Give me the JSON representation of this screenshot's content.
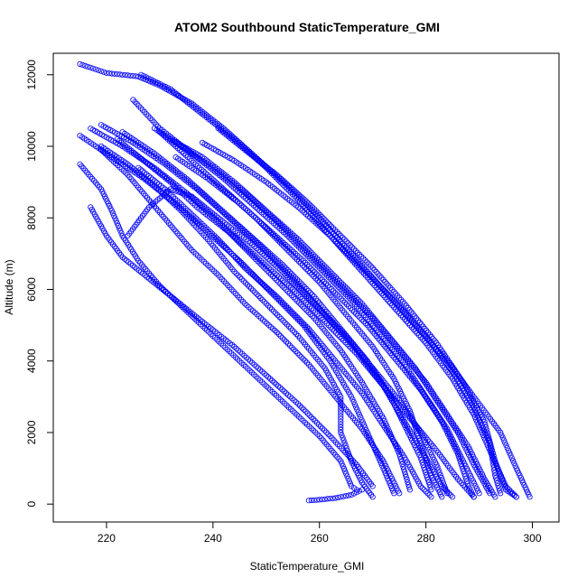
{
  "chart_data": {
    "type": "scatter",
    "title": "ATOM2 Southbound StaticTemperature_GMI",
    "xlabel": "StaticTemperature_GMI",
    "ylabel": "Altitude (m)",
    "xlim": [
      210,
      305
    ],
    "ylim": [
      -500,
      12600
    ],
    "xticks": [
      220,
      240,
      260,
      280,
      300
    ],
    "yticks": [
      0,
      2000,
      4000,
      6000,
      8000,
      10000,
      12000
    ],
    "xtick_labels": [
      "220",
      "240",
      "260",
      "280",
      "300"
    ],
    "ytick_labels": [
      "0",
      "2000",
      "4000",
      "6000",
      "8000",
      "10000",
      "12000"
    ],
    "marker": "open-circle",
    "color": "#0000ff",
    "grid": false,
    "legend": "none",
    "series": [
      {
        "points": [
          [
            215,
            12300
          ],
          [
            220,
            12050
          ],
          [
            226,
            11950
          ],
          [
            230,
            11700
          ],
          [
            236,
            11200
          ],
          [
            242,
            10500
          ],
          [
            248,
            9700
          ],
          [
            254,
            8900
          ],
          [
            260,
            8000
          ],
          [
            266,
            7000
          ],
          [
            272,
            6000
          ],
          [
            278,
            5000
          ],
          [
            284,
            4000
          ],
          [
            289,
            3000
          ],
          [
            294,
            2000
          ],
          [
            297,
            1000
          ],
          [
            299.5,
            200
          ]
        ]
      },
      {
        "points": [
          [
            226.5,
            12000
          ],
          [
            232,
            11600
          ],
          [
            238,
            10900
          ],
          [
            244,
            10200
          ],
          [
            250,
            9400
          ],
          [
            256,
            8500
          ],
          [
            262,
            7500
          ],
          [
            268,
            6500
          ],
          [
            274,
            5500
          ],
          [
            280,
            4500
          ],
          [
            285,
            3500
          ],
          [
            289,
            2500
          ],
          [
            292,
            1500
          ],
          [
            295,
            500
          ],
          [
            297,
            200
          ]
        ]
      },
      {
        "points": [
          [
            219,
            10600
          ],
          [
            225,
            10100
          ],
          [
            231,
            9500
          ],
          [
            237,
            8800
          ],
          [
            243,
            8000
          ],
          [
            249,
            7200
          ],
          [
            255,
            6300
          ],
          [
            261,
            5300
          ],
          [
            267,
            4300
          ],
          [
            272,
            3300
          ],
          [
            276,
            2300
          ],
          [
            280,
            1300
          ],
          [
            283,
            500
          ],
          [
            285,
            200
          ]
        ]
      },
      {
        "points": [
          [
            215,
            10300
          ],
          [
            221,
            9700
          ],
          [
            227,
            9100
          ],
          [
            233,
            8400
          ],
          [
            239,
            7600
          ],
          [
            245,
            6800
          ],
          [
            251,
            5900
          ],
          [
            257,
            5000
          ],
          [
            262,
            4000
          ],
          [
            266,
            3000
          ],
          [
            269,
            2000
          ],
          [
            272,
            1000
          ],
          [
            274,
            300
          ]
        ]
      },
      {
        "points": [
          [
            217,
            10500
          ],
          [
            223,
            10000
          ],
          [
            229,
            9400
          ],
          [
            235,
            8700
          ],
          [
            241,
            7900
          ],
          [
            247,
            7000
          ],
          [
            253,
            6100
          ],
          [
            259,
            5200
          ],
          [
            264,
            4300
          ],
          [
            268,
            3400
          ],
          [
            272,
            2400
          ],
          [
            275,
            1400
          ],
          [
            277,
            400
          ]
        ]
      },
      {
        "points": [
          [
            219,
            10000
          ],
          [
            224,
            9500
          ],
          [
            229,
            8900
          ],
          [
            234,
            8200
          ],
          [
            239,
            7400
          ],
          [
            244,
            6500
          ],
          [
            250,
            5600
          ],
          [
            256,
            4700
          ],
          [
            261,
            3800
          ],
          [
            264,
            3000
          ],
          [
            264,
            2000
          ],
          [
            266,
            1200
          ],
          [
            268,
            600
          ],
          [
            270,
            200
          ]
        ]
      },
      {
        "points": [
          [
            215,
            9500
          ],
          [
            219,
            8800
          ],
          [
            221,
            8200
          ],
          [
            223,
            7500
          ],
          [
            226,
            6800
          ],
          [
            230,
            6100
          ],
          [
            235,
            5400
          ],
          [
            240,
            4700
          ],
          [
            245,
            4000
          ],
          [
            250,
            3300
          ],
          [
            255,
            2600
          ],
          [
            260,
            1900
          ],
          [
            264,
            1200
          ],
          [
            266,
            500
          ],
          [
            267,
            400
          ]
        ]
      },
      {
        "points": [
          [
            217,
            8300
          ],
          [
            220,
            7500
          ],
          [
            223,
            6900
          ],
          [
            228,
            6300
          ],
          [
            233,
            5700
          ],
          [
            238,
            5100
          ],
          [
            244,
            4400
          ],
          [
            250,
            3600
          ],
          [
            256,
            2800
          ],
          [
            262,
            1900
          ],
          [
            267,
            1100
          ],
          [
            270,
            500
          ]
        ]
      },
      {
        "points": [
          [
            219,
            9900
          ],
          [
            224,
            9200
          ],
          [
            228,
            8500
          ],
          [
            232,
            7800
          ],
          [
            236,
            7100
          ],
          [
            241,
            6400
          ],
          [
            246,
            5600
          ],
          [
            252,
            4800
          ],
          [
            258,
            3900
          ],
          [
            263,
            3000
          ],
          [
            268,
            2100
          ],
          [
            272,
            1200
          ],
          [
            275,
            300
          ]
        ]
      },
      {
        "points": [
          [
            222,
            10200
          ],
          [
            227,
            9600
          ],
          [
            232,
            9000
          ],
          [
            237,
            8300
          ],
          [
            243,
            7600
          ],
          [
            249,
            6800
          ],
          [
            255,
            6000
          ],
          [
            261,
            5100
          ],
          [
            267,
            4200
          ],
          [
            272,
            3300
          ],
          [
            277,
            2400
          ],
          [
            282,
            1500
          ],
          [
            286,
            700
          ],
          [
            289,
            200
          ]
        ]
      },
      {
        "points": [
          [
            225,
            11300
          ],
          [
            230,
            10500
          ],
          [
            236,
            9800
          ],
          [
            242,
            9100
          ],
          [
            248,
            8300
          ],
          [
            254,
            7500
          ],
          [
            260,
            6600
          ],
          [
            266,
            5700
          ],
          [
            271,
            4800
          ],
          [
            276,
            3900
          ],
          [
            280,
            3000
          ],
          [
            284,
            2100
          ],
          [
            287,
            1200
          ],
          [
            290,
            300
          ]
        ]
      },
      {
        "points": [
          [
            229,
            10500
          ],
          [
            234,
            10000
          ],
          [
            240,
            9400
          ],
          [
            246,
            8700
          ],
          [
            252,
            7900
          ],
          [
            258,
            7000
          ],
          [
            264,
            6100
          ],
          [
            270,
            5200
          ],
          [
            275,
            4300
          ],
          [
            280,
            3400
          ],
          [
            284,
            2500
          ],
          [
            288,
            1600
          ],
          [
            291,
            700
          ],
          [
            293,
            200
          ]
        ]
      },
      {
        "points": [
          [
            232,
            10200
          ],
          [
            238,
            9700
          ],
          [
            244,
            9000
          ],
          [
            250,
            8200
          ],
          [
            256,
            7400
          ],
          [
            262,
            6500
          ],
          [
            268,
            5600
          ],
          [
            273,
            4700
          ],
          [
            278,
            3800
          ],
          [
            282,
            2900
          ],
          [
            286,
            2000
          ],
          [
            289,
            1100
          ],
          [
            292,
            300
          ]
        ]
      },
      {
        "points": [
          [
            233,
            9700
          ],
          [
            239,
            9100
          ],
          [
            245,
            8400
          ],
          [
            251,
            7600
          ],
          [
            257,
            6800
          ],
          [
            263,
            5900
          ],
          [
            269,
            5000
          ],
          [
            274,
            4100
          ],
          [
            279,
            3200
          ],
          [
            283,
            2300
          ],
          [
            286,
            1400
          ],
          [
            288,
            500
          ],
          [
            289,
            200
          ]
        ]
      },
      {
        "points": [
          [
            224,
            7500
          ],
          [
            228,
            8300
          ],
          [
            232,
            8800
          ],
          [
            236,
            8600
          ],
          [
            241,
            8000
          ],
          [
            247,
            7300
          ],
          [
            253,
            6500
          ],
          [
            259,
            5600
          ],
          [
            265,
            4700
          ],
          [
            270,
            3800
          ],
          [
            275,
            2900
          ],
          [
            279,
            2000
          ],
          [
            282,
            1100
          ],
          [
            284,
            300
          ]
        ]
      },
      {
        "points": [
          [
            226,
            9400
          ],
          [
            231,
            8800
          ],
          [
            236,
            8100
          ],
          [
            241,
            7400
          ],
          [
            246,
            6600
          ],
          [
            252,
            5800
          ],
          [
            258,
            4900
          ],
          [
            263,
            4000
          ],
          [
            268,
            3100
          ],
          [
            272,
            2200
          ],
          [
            276,
            1300
          ],
          [
            279,
            500
          ],
          [
            281,
            200
          ]
        ]
      },
      {
        "points": [
          [
            241,
            10500
          ],
          [
            246,
            9900
          ],
          [
            252,
            9200
          ],
          [
            258,
            8400
          ],
          [
            264,
            7500
          ],
          [
            270,
            6600
          ],
          [
            276,
            5600
          ],
          [
            282,
            4500
          ],
          [
            287,
            3400
          ],
          [
            291,
            2300
          ],
          [
            293,
            1200
          ],
          [
            295,
            400
          ],
          [
            297,
            200
          ]
        ]
      },
      {
        "points": [
          [
            238,
            10100
          ],
          [
            244,
            9600
          ],
          [
            250,
            9000
          ],
          [
            256,
            8300
          ],
          [
            262,
            7500
          ],
          [
            268,
            6600
          ],
          [
            274,
            5700
          ],
          [
            280,
            4700
          ],
          [
            285,
            3700
          ],
          [
            289,
            2700
          ],
          [
            292,
            1700
          ],
          [
            293,
            800
          ],
          [
            294,
            300
          ]
        ]
      },
      {
        "points": [
          [
            258,
            100
          ],
          [
            260,
            120
          ],
          [
            263,
            170
          ],
          [
            266,
            260
          ],
          [
            268,
            400
          ]
        ]
      },
      {
        "points": [
          [
            230,
            10400
          ],
          [
            236,
            9600
          ],
          [
            242,
            8800
          ],
          [
            248,
            8000
          ],
          [
            254,
            7100
          ],
          [
            260,
            6200
          ],
          [
            265,
            5300
          ],
          [
            270,
            4400
          ],
          [
            274,
            3500
          ],
          [
            277,
            2600
          ],
          [
            279,
            1700
          ],
          [
            281,
            800
          ],
          [
            283,
            200
          ]
        ]
      },
      {
        "points": [
          [
            223,
            10400
          ],
          [
            229,
            9800
          ],
          [
            235,
            9100
          ],
          [
            241,
            8300
          ],
          [
            247,
            7500
          ],
          [
            253,
            6700
          ],
          [
            259,
            5800
          ],
          [
            264,
            4900
          ],
          [
            269,
            4000
          ],
          [
            273,
            3100
          ],
          [
            276,
            2200
          ],
          [
            279,
            1300
          ],
          [
            281,
            400
          ]
        ]
      }
    ]
  }
}
